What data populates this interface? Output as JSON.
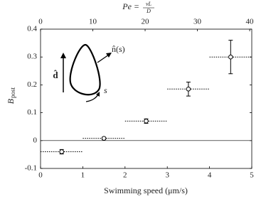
{
  "chart_data": {
    "type": "scatter",
    "x_label": "Swimming speed (μm/s)",
    "y_label": {
      "main": "B",
      "sub": "post"
    },
    "top_label": {
      "left": "Pe =",
      "numerator": "vL",
      "denominator": "D"
    },
    "annotations": {
      "d": "d̂",
      "n": "n̂(s)",
      "s": "s"
    },
    "series": [
      {
        "color": "#000000",
        "x": [
          0.5,
          1.5,
          2.5,
          3.5,
          4.5
        ],
        "values": [
          -0.04,
          0.008,
          0.07,
          0.185,
          0.3
        ],
        "y_err": [
          0.008,
          0.004,
          0.008,
          0.025,
          0.06
        ],
        "x_err": [
          0.5,
          0.5,
          0.5,
          0.5,
          0.5
        ]
      }
    ],
    "reference_line": 0,
    "xlim": [
      0,
      5
    ],
    "xticks": [
      0,
      1,
      2,
      3,
      4,
      5
    ],
    "x2lim": [
      0,
      40.4
    ],
    "x2ticks": [
      0,
      10,
      20,
      30,
      40
    ],
    "ylim": [
      -0.1,
      0.4
    ],
    "yticks": [
      -0.1,
      0,
      0.1,
      0.2,
      0.3,
      0.4
    ]
  }
}
